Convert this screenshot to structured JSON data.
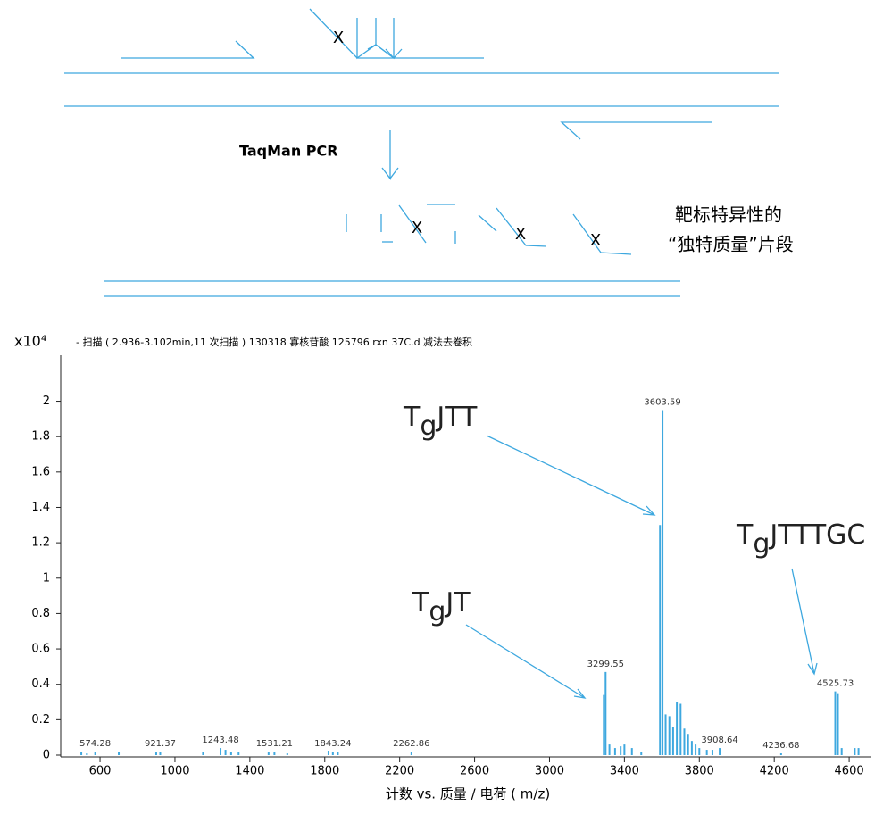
{
  "diagram": {
    "marks": [
      "X",
      "X",
      "X",
      "X"
    ],
    "step_label": "TaqMan PCR",
    "fragment_label": [
      "靶标特异性的",
      "“独特质量”片段"
    ]
  },
  "chart_data": {
    "type": "stick",
    "title": "- 扫描 ( 2.936-3.102min,11 次扫描 ) 130318 寡核苷酸 125796 rxn 37C.d 减法去卷积",
    "y_unit": "x10⁴",
    "x_label": "计数 vs. 质量 / 电荷 ( m/z)",
    "color": "#3ea8df",
    "xlim": [
      390,
      4714
    ],
    "ylim": [
      0,
      2.26
    ],
    "xticks": [
      600,
      1000,
      1400,
      1800,
      2200,
      2600,
      3000,
      3400,
      3800,
      4200,
      4600
    ],
    "yticks": [
      0,
      0.2,
      0.4,
      0.6,
      0.8,
      1,
      1.2,
      1.4,
      1.6,
      1.8,
      2
    ],
    "x": [
      500,
      530,
      574.28,
      700,
      900,
      921.37,
      1150,
      1243.48,
      1270,
      1300,
      1340,
      1500,
      1531.21,
      1600,
      1820,
      1843.24,
      1870,
      2262.86,
      3290,
      3299.55,
      3320,
      3350,
      3380,
      3400,
      3440,
      3490,
      3590,
      3603.59,
      3620,
      3640,
      3660,
      3680,
      3700,
      3720,
      3740,
      3760,
      3780,
      3800,
      3840,
      3870,
      3908.64,
      4236.68,
      4525.73,
      4540,
      4560,
      4630,
      4650
    ],
    "values": [
      0.02,
      0.01,
      0.02,
      0.02,
      0.015,
      0.02,
      0.02,
      0.04,
      0.03,
      0.02,
      0.015,
      0.015,
      0.02,
      0.01,
      0.025,
      0.02,
      0.02,
      0.02,
      0.34,
      0.47,
      0.06,
      0.04,
      0.05,
      0.06,
      0.04,
      0.02,
      1.3,
      1.95,
      0.23,
      0.22,
      0.16,
      0.3,
      0.29,
      0.15,
      0.12,
      0.08,
      0.06,
      0.04,
      0.03,
      0.03,
      0.04,
      0.01,
      0.36,
      0.35,
      0.04,
      0.04,
      0.04
    ],
    "peak_labels": [
      574.28,
      921.37,
      1243.48,
      1531.21,
      1843.24,
      2262.86,
      3299.55,
      3603.59,
      3908.64,
      4236.68,
      4525.73
    ],
    "annotations": [
      {
        "base": "T",
        "sub": "g",
        "rest": "JTT"
      },
      {
        "base": "T",
        "sub": "g",
        "rest": "JT"
      },
      {
        "base": "T",
        "sub": "g",
        "rest": "JTTTGC"
      }
    ]
  }
}
